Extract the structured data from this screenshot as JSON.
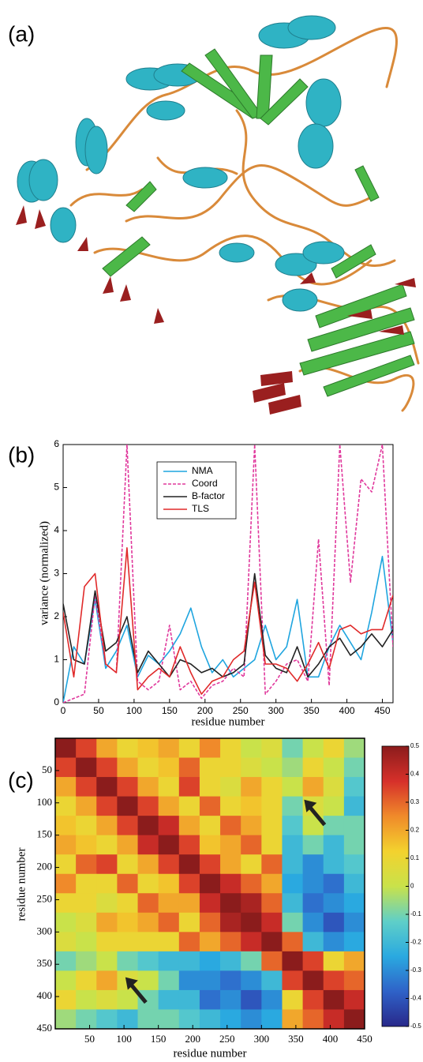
{
  "panels": [
    "(a)",
    "(b)",
    "(c)"
  ],
  "chart_data": [
    {
      "type": "line",
      "xlabel": "residue number",
      "ylabel": "variance (normalized)",
      "x": [
        0,
        15,
        30,
        45,
        60,
        75,
        90,
        105,
        120,
        135,
        150,
        165,
        180,
        195,
        210,
        225,
        240,
        255,
        270,
        285,
        300,
        315,
        330,
        345,
        360,
        375,
        390,
        405,
        420,
        435,
        450,
        465
      ],
      "series": [
        {
          "name": "NMA",
          "color": "#1fa5df",
          "dashed": false,
          "values": [
            0,
            1.3,
            0.9,
            2.4,
            0.8,
            1.2,
            1.8,
            0.6,
            1.1,
            0.9,
            1.2,
            1.6,
            2.2,
            1.3,
            0.7,
            1.0,
            0.6,
            0.8,
            1.0,
            1.8,
            1.0,
            1.3,
            2.4,
            0.6,
            0.6,
            1.3,
            1.8,
            1.4,
            1.0,
            2.1,
            3.4,
            1.4
          ]
        },
        {
          "name": "Coord",
          "color": "#e0389c",
          "dashed": true,
          "values": [
            0,
            0.1,
            0.2,
            2.5,
            0.9,
            0.7,
            6,
            0.5,
            0.3,
            0.5,
            1.8,
            0.3,
            0.5,
            0.1,
            0.4,
            0.5,
            0.8,
            0.6,
            6,
            0.2,
            0.5,
            0.9,
            1.0,
            0.5,
            3.8,
            0.4,
            6,
            2.8,
            5.2,
            4.9,
            6,
            1.3
          ]
        },
        {
          "name": "B-factor",
          "color": "#222222",
          "dashed": false,
          "values": [
            2.3,
            1.0,
            0.9,
            2.6,
            1.2,
            1.4,
            2.0,
            0.7,
            1.2,
            0.9,
            0.6,
            1.0,
            0.9,
            0.7,
            0.8,
            0.6,
            0.7,
            0.9,
            3.0,
            1.1,
            0.8,
            0.7,
            1.3,
            0.6,
            0.9,
            1.3,
            1.5,
            1.1,
            1.3,
            1.6,
            1.3,
            1.7
          ]
        },
        {
          "name": "TLS",
          "color": "#e02a2a",
          "dashed": false,
          "values": [
            2.1,
            0.6,
            2.7,
            3.0,
            0.9,
            0.7,
            3.6,
            0.3,
            0.6,
            0.8,
            0.6,
            1.3,
            0.7,
            0.2,
            0.5,
            0.6,
            1.0,
            1.2,
            2.8,
            0.9,
            0.9,
            0.8,
            0.5,
            0.9,
            1.4,
            0.8,
            1.7,
            1.8,
            1.6,
            1.7,
            1.7,
            2.5
          ]
        }
      ],
      "xlim": [
        0,
        465
      ],
      "xticks": [
        0,
        50,
        100,
        150,
        200,
        250,
        300,
        350,
        400,
        450
      ],
      "ylim": [
        0,
        6
      ],
      "yticks": [
        0,
        1,
        2,
        3,
        4,
        5,
        6
      ],
      "grid": false,
      "legend": "upper center"
    },
    {
      "type": "heatmap",
      "xlabel": "residue number",
      "ylabel": "residue number",
      "x_bins": [
        0,
        30,
        60,
        90,
        120,
        150,
        180,
        210,
        240,
        270,
        300,
        330,
        360,
        390,
        420,
        450
      ],
      "y_bins": [
        0,
        30,
        60,
        90,
        120,
        150,
        180,
        210,
        240,
        270,
        300,
        330,
        360,
        390,
        420,
        450
      ],
      "xlim": [
        0,
        450
      ],
      "ylim": [
        0,
        450
      ],
      "y_reversed": true,
      "xticks": [
        50,
        100,
        150,
        200,
        250,
        300,
        350,
        400,
        450
      ],
      "yticks": [
        50,
        100,
        150,
        200,
        250,
        300,
        350,
        400,
        450
      ],
      "zlim": [
        -0.5,
        0.5
      ],
      "colormap": [
        "#28288a",
        "#2f62c8",
        "#2aa9e0",
        "#5fcfc8",
        "#c9e24a",
        "#f3d22e",
        "#f08a2a",
        "#d6302a",
        "#8b1c1c"
      ],
      "colorbar_ticks": [
        0.5,
        0.4,
        0.3,
        0.2,
        0.1,
        0,
        -0.1,
        -0.2,
        -0.3,
        -0.4,
        -0.5
      ],
      "z": [
        [
          0.5,
          0.35,
          0.2,
          0.1,
          0.15,
          0.2,
          0.1,
          0.25,
          0.1,
          0.0,
          0.05,
          -0.1,
          0.0,
          0.1,
          -0.05
        ],
        [
          0.35,
          0.5,
          0.35,
          0.2,
          0.1,
          0.15,
          0.3,
          0.1,
          0.1,
          0.05,
          0.0,
          -0.05,
          0.1,
          0.0,
          -0.1
        ],
        [
          0.2,
          0.35,
          0.5,
          0.35,
          0.2,
          0.1,
          0.35,
          0.1,
          0.05,
          0.2,
          0.1,
          0.0,
          0.2,
          0.05,
          -0.15
        ],
        [
          0.1,
          0.2,
          0.35,
          0.5,
          0.35,
          0.2,
          0.1,
          0.3,
          0.1,
          0.15,
          0.1,
          -0.1,
          0.05,
          0.0,
          -0.2
        ],
        [
          0.15,
          0.1,
          0.2,
          0.35,
          0.5,
          0.4,
          0.2,
          0.1,
          0.3,
          0.2,
          0.1,
          -0.15,
          0.0,
          -0.1,
          -0.1
        ],
        [
          0.2,
          0.15,
          0.1,
          0.2,
          0.4,
          0.5,
          0.35,
          0.15,
          0.2,
          0.3,
          0.1,
          -0.2,
          -0.1,
          -0.2,
          -0.1
        ],
        [
          0.1,
          0.3,
          0.35,
          0.1,
          0.2,
          0.35,
          0.5,
          0.35,
          0.2,
          0.1,
          0.3,
          -0.2,
          -0.3,
          -0.2,
          -0.15
        ],
        [
          0.25,
          0.1,
          0.1,
          0.3,
          0.1,
          0.15,
          0.35,
          0.5,
          0.4,
          0.3,
          0.2,
          -0.25,
          -0.3,
          -0.35,
          -0.2
        ],
        [
          0.1,
          0.1,
          0.05,
          0.1,
          0.3,
          0.2,
          0.2,
          0.4,
          0.5,
          0.45,
          0.3,
          -0.2,
          -0.35,
          -0.3,
          -0.25
        ],
        [
          0.0,
          0.05,
          0.2,
          0.15,
          0.2,
          0.3,
          0.1,
          0.3,
          0.45,
          0.5,
          0.4,
          -0.1,
          -0.3,
          -0.4,
          -0.3
        ],
        [
          0.05,
          0.0,
          0.1,
          0.1,
          0.1,
          0.1,
          0.3,
          0.2,
          0.3,
          0.4,
          0.5,
          0.3,
          -0.2,
          -0.3,
          -0.25
        ],
        [
          -0.1,
          -0.05,
          0.0,
          -0.1,
          -0.15,
          -0.2,
          -0.2,
          -0.25,
          -0.2,
          -0.1,
          0.3,
          0.5,
          0.35,
          0.1,
          0.2
        ],
        [
          0.0,
          0.1,
          0.2,
          0.05,
          0.0,
          -0.1,
          -0.3,
          -0.3,
          -0.35,
          -0.3,
          -0.2,
          0.35,
          0.5,
          0.35,
          0.3
        ],
        [
          0.1,
          0.0,
          0.05,
          0.0,
          -0.1,
          -0.2,
          -0.2,
          -0.35,
          -0.3,
          -0.4,
          -0.3,
          0.1,
          0.35,
          0.5,
          0.4
        ],
        [
          -0.05,
          -0.1,
          -0.15,
          -0.2,
          -0.1,
          -0.1,
          -0.15,
          -0.2,
          -0.25,
          -0.3,
          -0.25,
          0.2,
          0.3,
          0.4,
          0.5
        ]
      ]
    }
  ]
}
